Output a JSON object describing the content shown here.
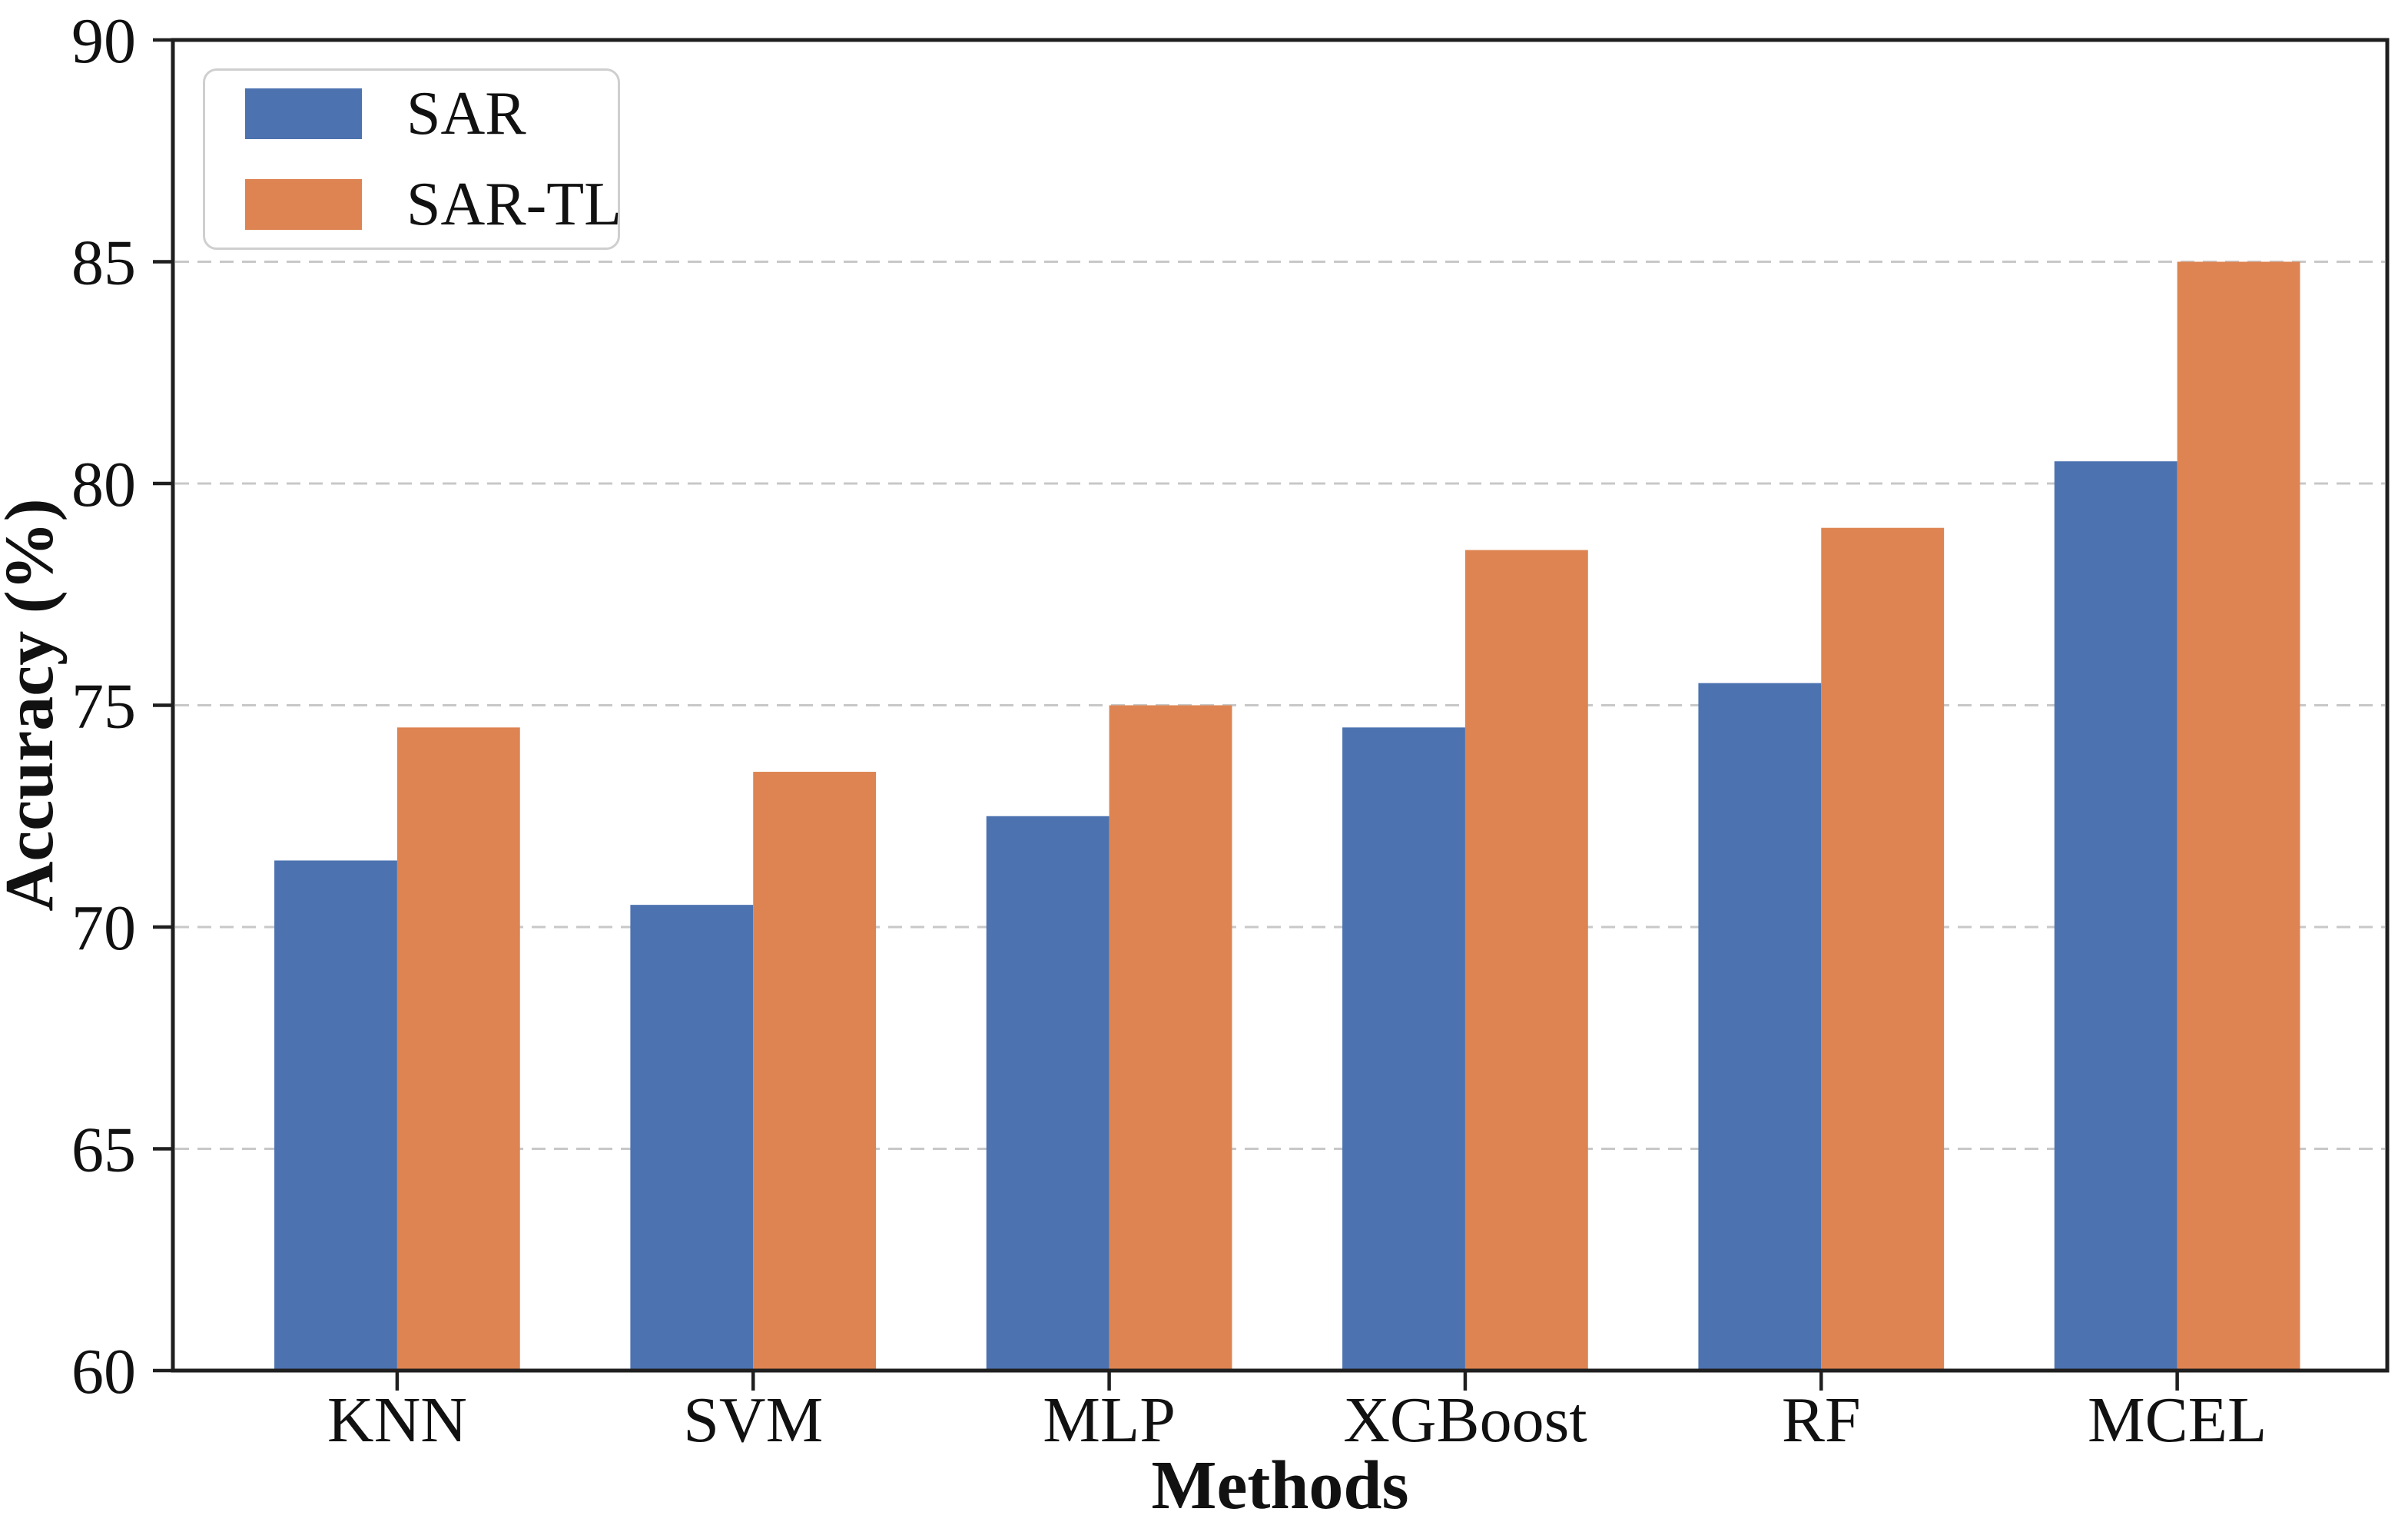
{
  "chart_data": {
    "type": "bar",
    "title": "",
    "categories": [
      "KNN",
      "SVM",
      "MLP",
      "XGBoost",
      "RF",
      "MCEL"
    ],
    "series": [
      {
        "name": "SAR",
        "color": "#4C72B0",
        "values": [
          71.5,
          70.5,
          72.5,
          74.5,
          75.5,
          80.5
        ]
      },
      {
        "name": "SAR-TL",
        "color": "#DD8452",
        "values": [
          74.5,
          73.5,
          75.0,
          78.5,
          79.0,
          85.0
        ]
      }
    ],
    "xlabel": "Methods",
    "ylabel": "Accuracy (%)",
    "ylim": [
      60,
      90
    ],
    "yticks": [
      60,
      65,
      70,
      75,
      80,
      85,
      90
    ],
    "grid": "horizontal-dashed",
    "legend_position": "upper-left",
    "legend_entries": [
      "SAR",
      "SAR-TL"
    ]
  },
  "colors": {
    "axis": "#1f1f1f",
    "grid": "#c8c8c8",
    "tick_label": "#111111",
    "legend_border": "#cfcfcf",
    "background": "#ffffff"
  }
}
